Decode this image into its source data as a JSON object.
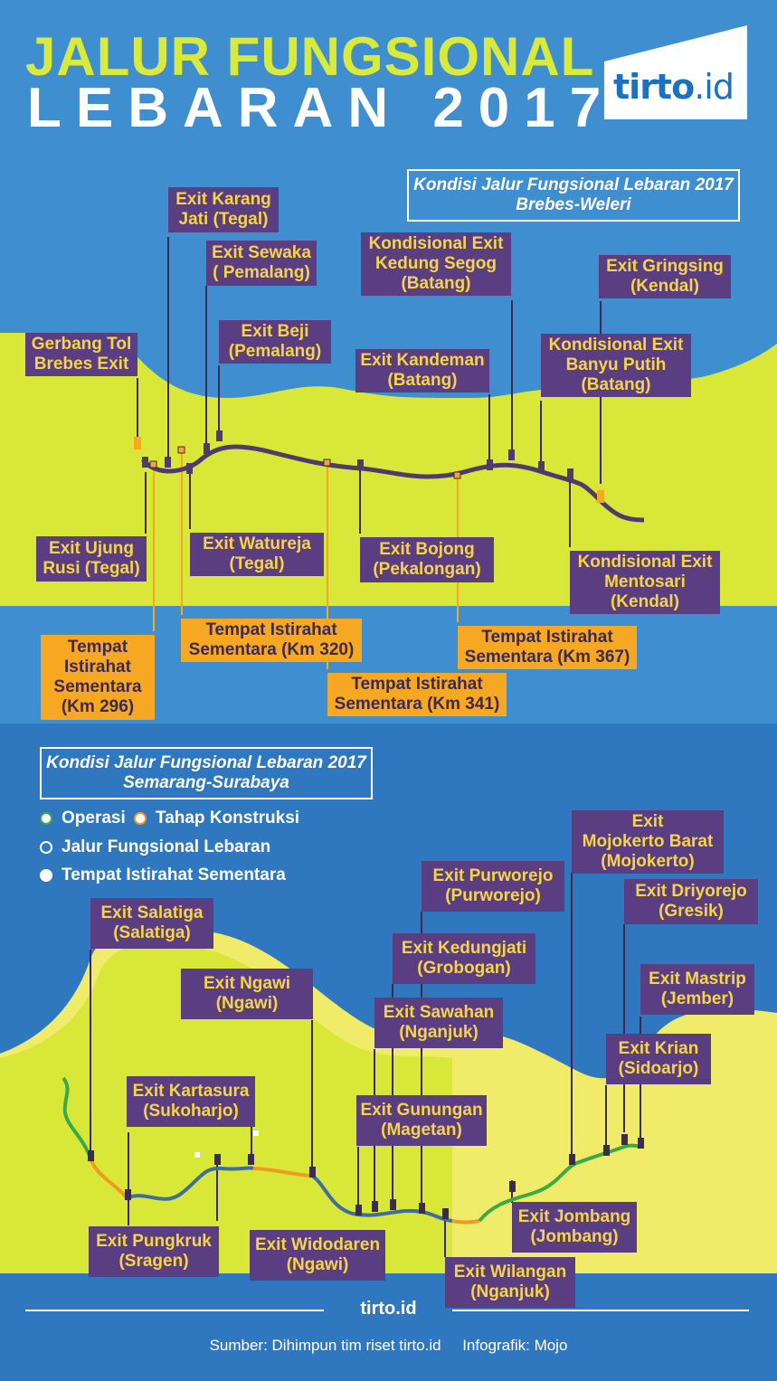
{
  "header": {
    "title_line1": "JALUR FUNGSIONAL",
    "title_line2": "LEBARAN 2017",
    "logo_text": "tirto",
    "logo_suffix": ".id"
  },
  "colors": {
    "sea_top": "#3f8fd0",
    "sea_bottom": "#2f78c0",
    "land_top": "#d9e838",
    "land_bottom": "#f0ec6a",
    "road": "#4f3a6e",
    "label_bg": "#5b3e82",
    "label_text": "#f5d547",
    "tempat_bg": "#f7a823",
    "operasi": "#3aaa48",
    "konstruksi": "#f29a1f",
    "fungsional": "#3c6f9e"
  },
  "section1": {
    "title": "Kondisi Jalur Fungsional Lebaran 2017\nBrebes-Weleri",
    "labels": [
      "Exit Karang\nJati (Tegal)",
      "Exit Sewaka\n( Pemalang)",
      "Kondisional Exit\nKedung Segog\n(Batang)",
      "Exit Gringsing\n(Kendal)",
      "Gerbang Tol\nBrebes Exit",
      "Exit Beji\n(Pemalang)",
      "Exit Kandeman\n(Batang)",
      "Kondisional Exit\nBanyu Putih\n(Batang)",
      "Exit Ujung\nRusi (Tegal)",
      "Exit Watureja\n(Tegal)",
      "Exit Bojong\n(Pekalongan)",
      "Kondisional Exit\nMentosari\n(Kendal)"
    ],
    "tempat": [
      "Tempat\nIstirahat\nSementara\n(Km 296)",
      "Tempat Istirahat\nSementara (Km 320)",
      "Tempat Istirahat\nSementara (Km 341)",
      "Tempat Istirahat\nSementara (Km 367)"
    ]
  },
  "section2": {
    "title": "Kondisi Jalur Fungsional Lebaran 2017\nSemarang-Surabaya",
    "legend": [
      "Operasi",
      "Tahap Konstruksi",
      "Jalur Fungsional Lebaran",
      "Tempat Istirahat Sementara"
    ],
    "labels": [
      "Exit\nMojokerto Barat\n(Mojokerto)",
      "Exit Purworejo\n(Purworejo)",
      "Exit  Driyorejo\n(Gresik)",
      "Exit Salatiga\n(Salatiga)",
      "Exit Kedungjati\n(Grobogan)",
      "Exit Ngawi\n(Ngawi)",
      "Exit Mastrip\n(Jember)",
      "Exit Sawahan\n(Nganjuk)",
      "Exit Krian\n(Sidoarjo)",
      "Exit Kartasura\n(Sukoharjo)",
      "Exit Gunungan\n(Magetan)",
      "Exit Jombang\n(Jombang)",
      "Exit Pungkruk\n(Sragen)",
      "Exit Widodaren\n(Ngawi)",
      "Exit Wilangan\n(Nganjuk)"
    ]
  },
  "footer": {
    "brand": "tirto.id",
    "source": "Sumber: Dihimpun tim riset tirto.id     Infografik: Mojo"
  }
}
